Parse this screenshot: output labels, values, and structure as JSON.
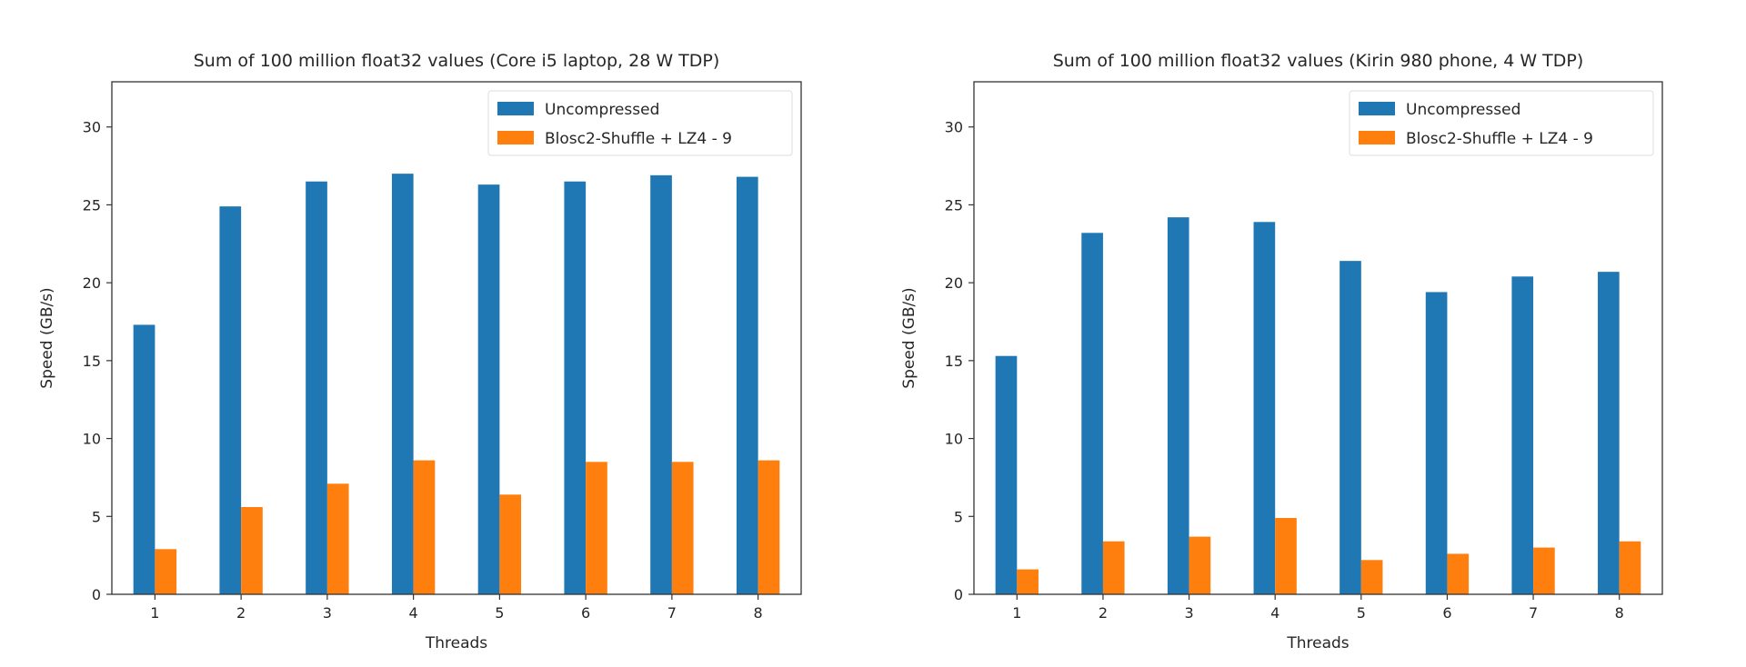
{
  "chart_data": [
    {
      "type": "bar",
      "title": "Sum of 100 million float32 values (Core i5 laptop, 28 W TDP)",
      "xlabel": "Threads",
      "ylabel": "Speed (GB/s)",
      "categories": [
        "1",
        "2",
        "3",
        "4",
        "5",
        "6",
        "7",
        "8"
      ],
      "ylim": [
        0,
        32.9
      ],
      "yticks": [
        0,
        5,
        10,
        15,
        20,
        25,
        30
      ],
      "grid": false,
      "legend": "top-right",
      "series": [
        {
          "name": "Uncompressed",
          "color": "#1f77b4",
          "values": [
            17.3,
            24.9,
            26.5,
            27.0,
            26.3,
            26.5,
            26.9,
            26.8
          ]
        },
        {
          "name": "Blosc2-Shuffle + LZ4 - 9",
          "color": "#ff7f0e",
          "values": [
            2.9,
            5.6,
            7.1,
            8.6,
            6.4,
            8.5,
            8.5,
            8.6
          ]
        }
      ]
    },
    {
      "type": "bar",
      "title": "Sum of 100 million float32 values (Kirin 980 phone, 4 W TDP)",
      "xlabel": "Threads",
      "ylabel": "Speed (GB/s)",
      "categories": [
        "1",
        "2",
        "3",
        "4",
        "5",
        "6",
        "7",
        "8"
      ],
      "ylim": [
        0,
        32.9
      ],
      "yticks": [
        0,
        5,
        10,
        15,
        20,
        25,
        30
      ],
      "grid": false,
      "legend": "top-right",
      "series": [
        {
          "name": "Uncompressed",
          "color": "#1f77b4",
          "values": [
            15.3,
            23.2,
            24.2,
            23.9,
            21.4,
            19.4,
            20.4,
            20.7
          ]
        },
        {
          "name": "Blosc2-Shuffle + LZ4 - 9",
          "color": "#ff7f0e",
          "values": [
            1.6,
            3.4,
            3.7,
            4.9,
            2.2,
            2.6,
            3.0,
            3.4
          ]
        }
      ]
    }
  ]
}
